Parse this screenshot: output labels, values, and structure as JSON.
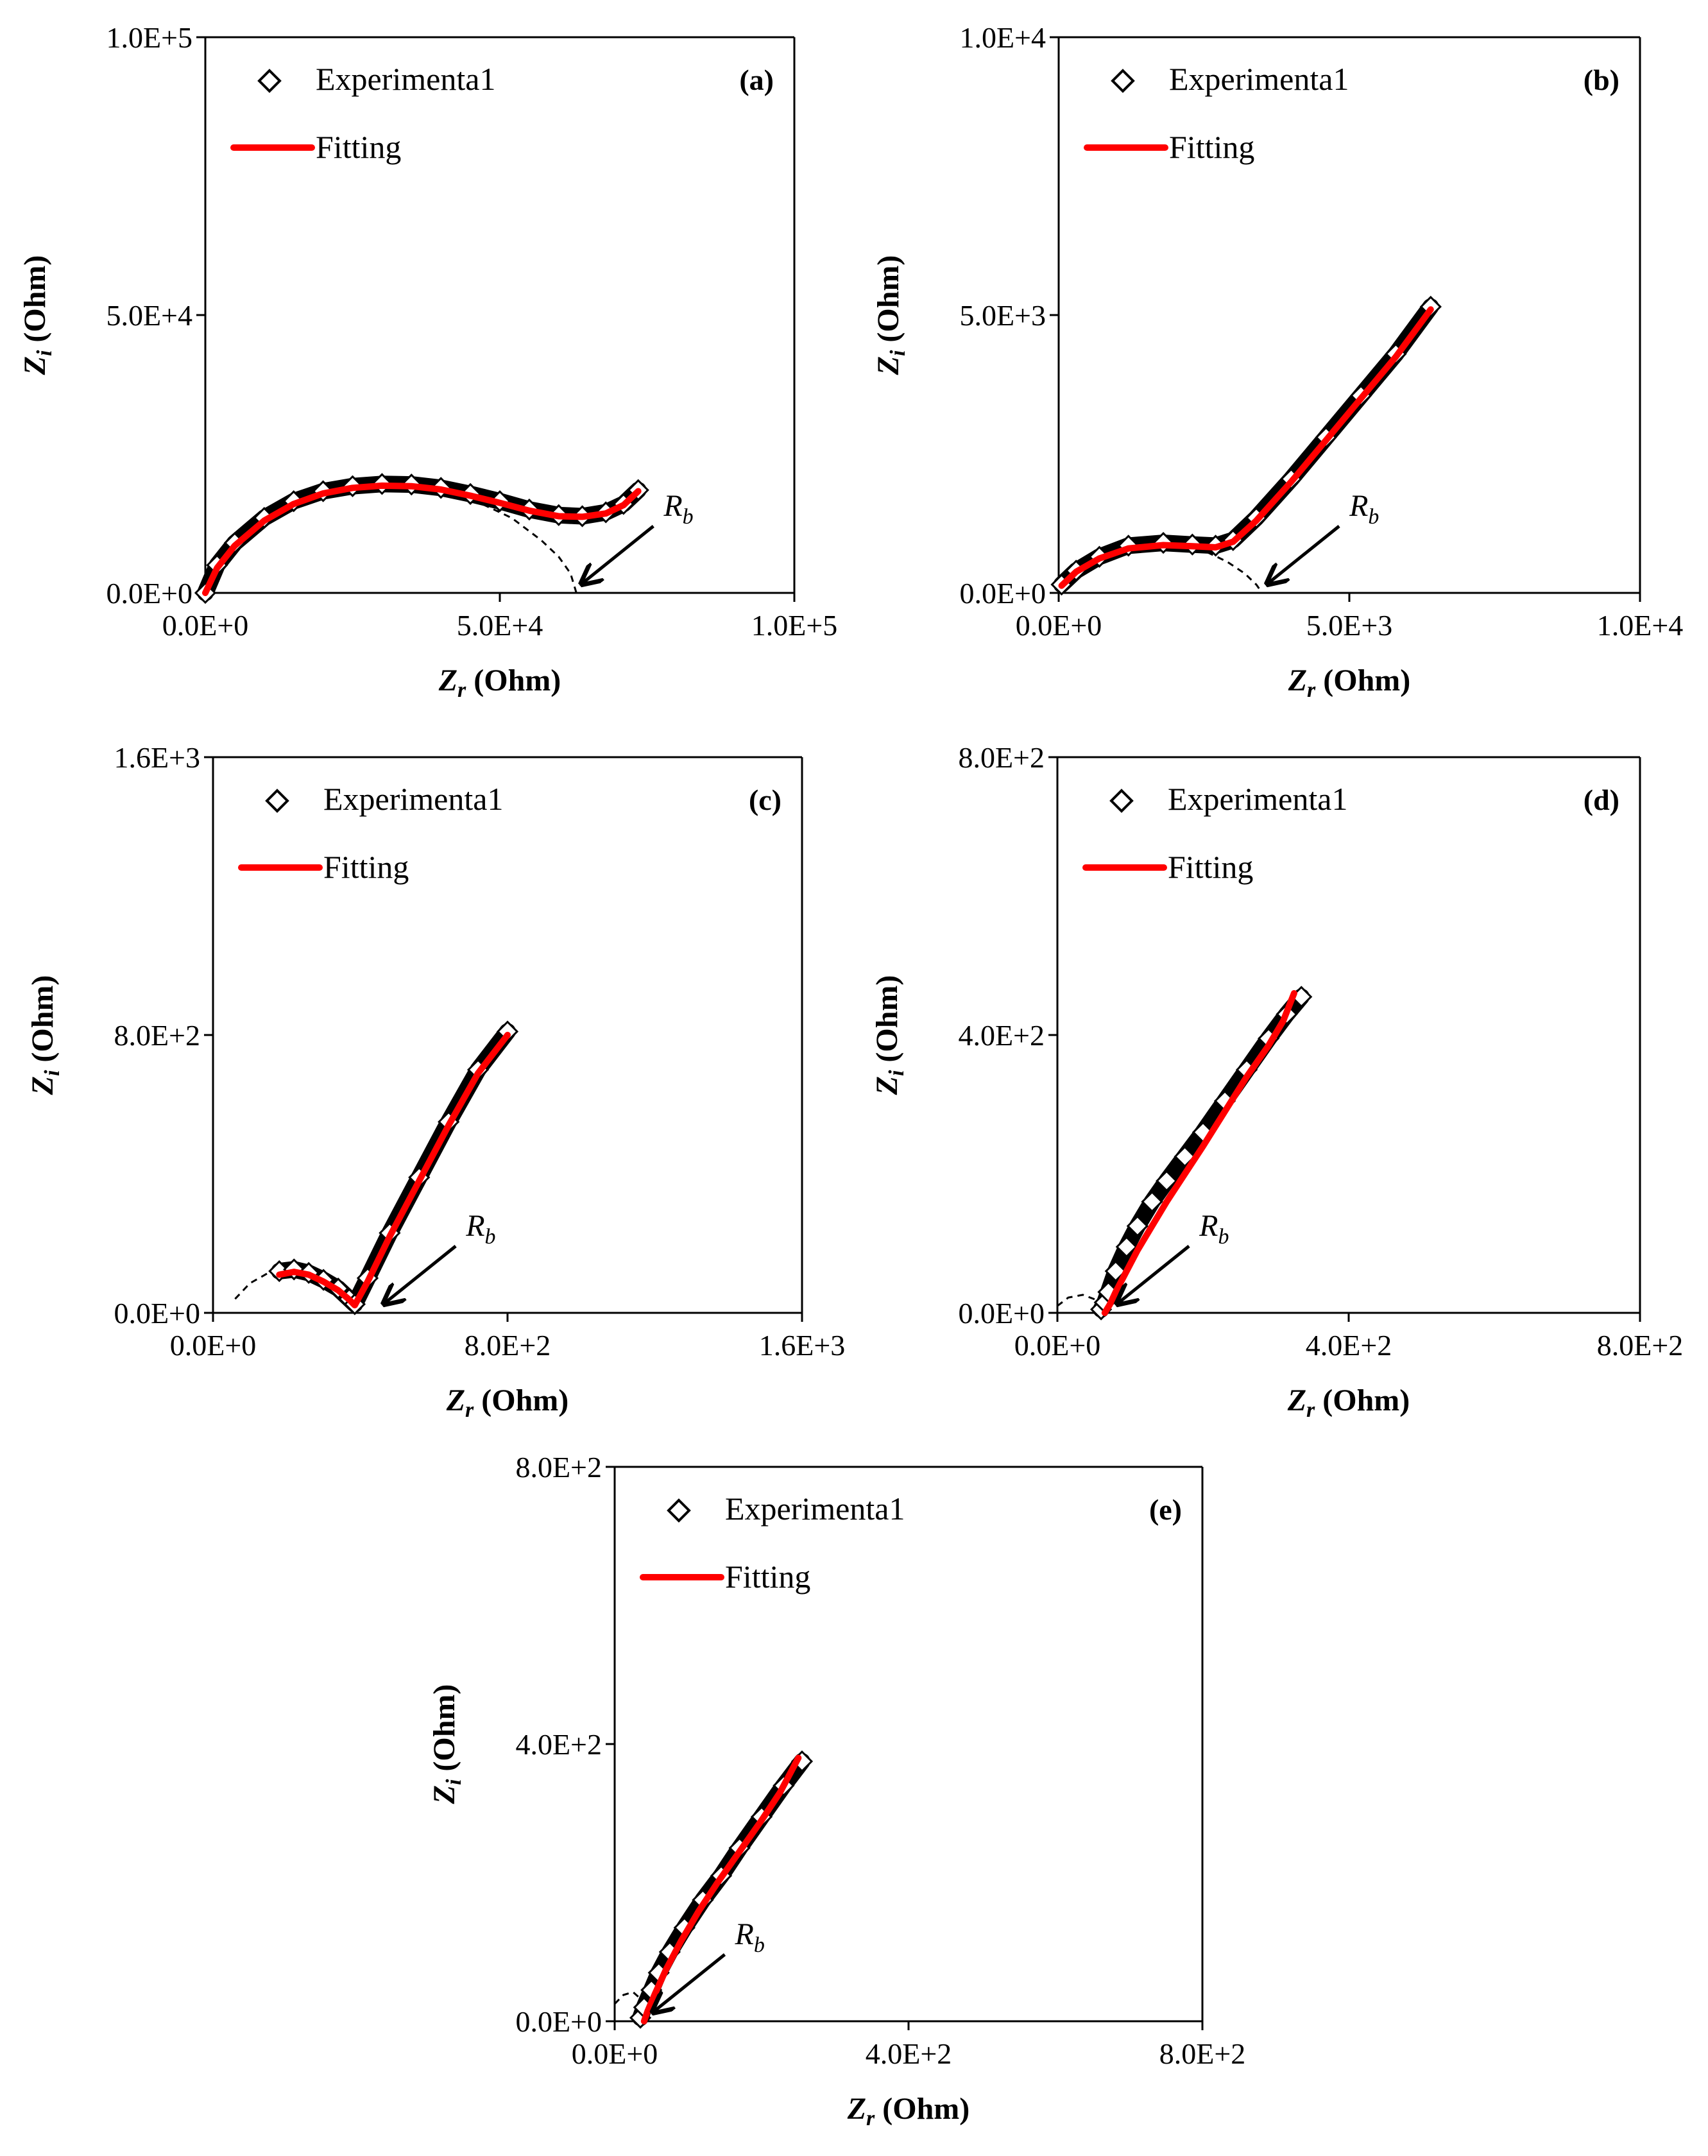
{
  "figure": {
    "panels": [
      "(a)",
      "(b)",
      "(c)",
      "(d)",
      "(e)"
    ]
  },
  "chart_data": [
    {
      "id": "a",
      "type": "scatter",
      "panel_label": "(a)",
      "xlabel_var": "Z",
      "xlabel_sub": "r",
      "xlabel_unit": " (Ohm)",
      "ylabel_var": "Z",
      "ylabel_sub": "i",
      "ylabel_unit": " (Ohm)",
      "xlim": [
        0,
        100000
      ],
      "ylim": [
        0,
        100000
      ],
      "xticks": [
        "0.0E+0",
        "5.0E+4",
        "1.0E+5"
      ],
      "yticks": [
        "0.0E+0",
        "5.0E+4",
        "1.0E+5"
      ],
      "legend": {
        "experimental": "Experimenta1",
        "fitting": "Fitting",
        "position": "top-left"
      },
      "annotation": {
        "var": "R",
        "sub": "b",
        "value": 63000
      },
      "colors": {
        "experimental": "#000000",
        "fitting": "#ff0000",
        "dashed": "#000000"
      },
      "series": [
        {
          "name": "Experimenta1",
          "style": "diamond-markers",
          "x": [
            0,
            2000,
            5000,
            10000,
            15000,
            20000,
            25000,
            30000,
            35000,
            40000,
            45000,
            50000,
            55000,
            60000,
            64000,
            68000,
            71000,
            73500
          ],
          "y": [
            0,
            5000,
            9000,
            13500,
            16500,
            18300,
            19200,
            19600,
            19500,
            18900,
            17800,
            16500,
            15000,
            14000,
            13800,
            14500,
            16000,
            18500
          ]
        },
        {
          "name": "Fitting",
          "style": "red-line",
          "x": [
            0,
            2000,
            5000,
            10000,
            15000,
            20000,
            25000,
            30000,
            35000,
            40000,
            45000,
            50000,
            55000,
            60000,
            64000,
            68000,
            71000,
            73500
          ],
          "y": [
            0,
            4500,
            8500,
            13000,
            16000,
            17900,
            18900,
            19300,
            19200,
            18600,
            17500,
            16200,
            14800,
            13800,
            13700,
            14300,
            15800,
            18300
          ]
        },
        {
          "name": "semicircle",
          "style": "dashed",
          "x": [
            0,
            3000,
            8000,
            15000,
            22000,
            30000,
            38000,
            45000,
            52000,
            57000,
            60000,
            62000,
            63000
          ],
          "y": [
            0,
            6000,
            11500,
            16000,
            18500,
            19600,
            19000,
            17000,
            13500,
            9500,
            6500,
            3500,
            0
          ]
        }
      ]
    },
    {
      "id": "b",
      "type": "scatter",
      "panel_label": "(b)",
      "xlabel_var": "Z",
      "xlabel_sub": "r",
      "xlabel_unit": " (Ohm)",
      "ylabel_var": "Z",
      "ylabel_sub": "i",
      "ylabel_unit": " (Ohm)",
      "xlim": [
        0,
        10000
      ],
      "ylim": [
        0,
        10000
      ],
      "xticks": [
        "0.0E+0",
        "5.0E+3",
        "1.0E+4"
      ],
      "yticks": [
        "0.0E+0",
        "5.0E+3",
        "1.0E+4"
      ],
      "legend": {
        "experimental": "Experimenta1",
        "fitting": "Fitting",
        "position": "top-left"
      },
      "annotation": {
        "var": "R",
        "sub": "b",
        "value": 3500
      },
      "colors": {
        "experimental": "#000000",
        "fitting": "#ff0000",
        "dashed": "#000000"
      },
      "series": [
        {
          "name": "Experimenta1",
          "style": "diamond-markers",
          "x": [
            50,
            300,
            700,
            1200,
            1800,
            2300,
            2700,
            3000,
            3400,
            4000,
            4600,
            5200,
            5800,
            6400
          ],
          "y": [
            150,
            400,
            650,
            850,
            900,
            870,
            850,
            950,
            1350,
            2050,
            2800,
            3550,
            4300,
            5150
          ]
        },
        {
          "name": "Fitting",
          "style": "red-line",
          "x": [
            50,
            300,
            700,
            1200,
            1800,
            2300,
            2700,
            3000,
            3400,
            4000,
            4600,
            5200,
            5800,
            6400
          ],
          "y": [
            130,
            380,
            620,
            800,
            860,
            840,
            820,
            920,
            1300,
            2000,
            2750,
            3500,
            4250,
            5100
          ]
        },
        {
          "name": "semicircle",
          "style": "dashed",
          "x": [
            0,
            400,
            900,
            1500,
            2000,
            2500,
            2900,
            3200,
            3400,
            3500
          ],
          "y": [
            150,
            550,
            800,
            880,
            860,
            760,
            560,
            350,
            150,
            0
          ]
        }
      ]
    },
    {
      "id": "c",
      "type": "scatter",
      "panel_label": "(c)",
      "xlabel_var": "Z",
      "xlabel_sub": "r",
      "xlabel_unit": " (Ohm)",
      "ylabel_var": "Z",
      "ylabel_sub": "i",
      "ylabel_unit": " (Ohm)",
      "xlim": [
        0,
        1600
      ],
      "ylim": [
        0,
        1600
      ],
      "xticks": [
        "0.0E+0",
        "8.0E+2",
        "1.6E+3"
      ],
      "yticks": [
        "0.0E+0",
        "8.0E+2",
        "1.6E+3"
      ],
      "legend": {
        "experimental": "Experimenta1",
        "fitting": "Fitting",
        "position": "top-left"
      },
      "annotation": {
        "var": "R",
        "sub": "b",
        "value": 450
      },
      "colors": {
        "experimental": "#000000",
        "fitting": "#ff0000",
        "dashed": "#000000"
      },
      "series": [
        {
          "name": "Experimenta1",
          "style": "diamond-markers",
          "x": [
            180,
            220,
            260,
            300,
            340,
            370,
            385,
            420,
            480,
            560,
            640,
            720,
            800
          ],
          "y": [
            120,
            125,
            115,
            95,
            70,
            40,
            25,
            100,
            230,
            390,
            550,
            700,
            810
          ]
        },
        {
          "name": "Fitting",
          "style": "red-line",
          "x": [
            180,
            220,
            260,
            300,
            340,
            370,
            385,
            420,
            480,
            560,
            640,
            720,
            800
          ],
          "y": [
            110,
            118,
            110,
            90,
            65,
            38,
            22,
            90,
            220,
            380,
            540,
            690,
            800
          ]
        },
        {
          "name": "semicircle",
          "style": "dashed",
          "x": [
            60,
            100,
            150,
            200,
            250,
            300,
            350,
            385
          ],
          "y": [
            40,
            85,
            115,
            125,
            115,
            90,
            55,
            25
          ]
        }
      ]
    },
    {
      "id": "d",
      "type": "scatter",
      "panel_label": "(d)",
      "xlabel_var": "Z",
      "xlabel_sub": "r",
      "xlabel_unit": " (Ohm)",
      "ylabel_var": "Z",
      "ylabel_sub": "i",
      "ylabel_unit": " (Ohm)",
      "xlim": [
        0,
        800
      ],
      "ylim": [
        0,
        800
      ],
      "xticks": [
        "0.0E+0",
        "4.0E+2",
        "8.0E+2"
      ],
      "yticks": [
        "0.0E+0",
        "4.0E+2",
        "8.0E+2"
      ],
      "legend": {
        "experimental": "Experimenta1",
        "fitting": "Fitting",
        "position": "top-left"
      },
      "annotation": {
        "var": "R",
        "sub": "b",
        "value": 75
      },
      "colors": {
        "experimental": "#000000",
        "fitting": "#ff0000",
        "dashed": "#000000"
      },
      "series": [
        {
          "name": "Experimenta1",
          "style": "diamond-markers",
          "x": [
            60,
            65,
            70,
            80,
            95,
            110,
            130,
            150,
            175,
            200,
            230,
            260,
            290,
            315,
            335
          ],
          "y": [
            5,
            15,
            30,
            60,
            95,
            125,
            160,
            190,
            225,
            260,
            305,
            350,
            395,
            430,
            455
          ]
        },
        {
          "name": "Fitting",
          "style": "red-line",
          "x": [
            65,
            72,
            80,
            95,
            110,
            130,
            150,
            175,
            200,
            230,
            260,
            290,
            310,
            325
          ],
          "y": [
            0,
            12,
            30,
            60,
            90,
            125,
            160,
            200,
            240,
            290,
            340,
            385,
            420,
            460
          ]
        },
        {
          "name": "semicircle",
          "style": "dashed",
          "x": [
            0,
            15,
            35,
            55,
            70
          ],
          "y": [
            10,
            22,
            26,
            18,
            5
          ]
        }
      ]
    },
    {
      "id": "e",
      "type": "scatter",
      "panel_label": "(e)",
      "xlabel_var": "Z",
      "xlabel_sub": "r",
      "xlabel_unit": " (Ohm)",
      "ylabel_var": "Z",
      "ylabel_sub": "i",
      "ylabel_unit": " (Ohm)",
      "xlim": [
        0,
        800
      ],
      "ylim": [
        0,
        800
      ],
      "xticks": [
        "0.0E+0",
        "4.0E+2",
        "8.0E+2"
      ],
      "yticks": [
        "0.0E+0",
        "4.0E+2",
        "8.0E+2"
      ],
      "legend": {
        "experimental": "Experimenta1",
        "fitting": "Fitting",
        "position": "top-left"
      },
      "annotation": {
        "var": "R",
        "sub": "b",
        "value": 45
      },
      "colors": {
        "experimental": "#000000",
        "fitting": "#ff0000",
        "dashed": "#000000"
      },
      "series": [
        {
          "name": "Experimenta1",
          "style": "diamond-markers",
          "x": [
            35,
            40,
            50,
            60,
            75,
            95,
            120,
            145,
            170,
            200,
            230,
            255
          ],
          "y": [
            5,
            20,
            45,
            70,
            100,
            135,
            175,
            210,
            250,
            295,
            340,
            375
          ]
        },
        {
          "name": "Fitting",
          "style": "red-line",
          "x": [
            40,
            45,
            55,
            70,
            90,
            115,
            140,
            170,
            200,
            225,
            250
          ],
          "y": [
            0,
            15,
            40,
            75,
            115,
            160,
            200,
            245,
            290,
            330,
            380
          ]
        },
        {
          "name": "semicircle",
          "style": "dashed",
          "x": [
            0,
            12,
            25,
            38,
            45
          ],
          "y": [
            25,
            38,
            42,
            30,
            8
          ]
        }
      ]
    }
  ]
}
